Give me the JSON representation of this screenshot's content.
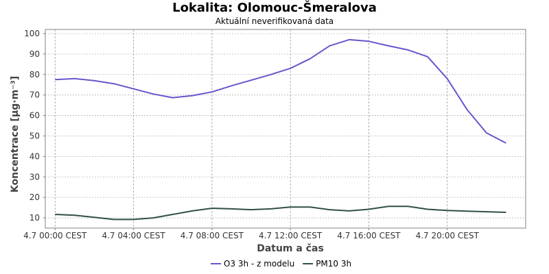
{
  "chart_data": {
    "type": "line",
    "title": "Lokalita: Olomouc-Šmeralova",
    "subtitle": "Aktuální neverifikovaná data",
    "xlabel": "Datum a čas",
    "ylabel": "Koncentrace [µg·m⁻³]",
    "ylim": [
      5,
      102
    ],
    "yticks": [
      10,
      20,
      30,
      40,
      50,
      60,
      70,
      80,
      90,
      100
    ],
    "xlim": [
      -0.5,
      24.0
    ],
    "xticks": [
      {
        "hour": 0,
        "label": "4.7 00:00 CEST"
      },
      {
        "hour": 4,
        "label": "4.7 04:00 CEST"
      },
      {
        "hour": 8,
        "label": "4.7 08:00 CEST"
      },
      {
        "hour": 12,
        "label": "4.7 12:00 CEST"
      },
      {
        "hour": 16,
        "label": "4.7 16:00 CEST"
      },
      {
        "hour": 20,
        "label": "4.7 20:00 CEST"
      }
    ],
    "grid": true,
    "legend_position": "bottom",
    "series": [
      {
        "name": "O3 3h - z modelu",
        "color": "#6655cc",
        "x": [
          0,
          1,
          2,
          3,
          4,
          5,
          6,
          7,
          8,
          9,
          10,
          11,
          12,
          13,
          14,
          15,
          16,
          17,
          18,
          19,
          20,
          21,
          22,
          23
        ],
        "values": [
          77.5,
          78,
          77,
          75.5,
          73,
          70.5,
          68.7,
          69.7,
          71.5,
          74.5,
          77.2,
          80,
          83,
          87.7,
          94,
          97,
          96.2,
          94,
          92,
          88.7,
          78,
          63,
          51.5,
          46.5
        ]
      },
      {
        "name": "PM10 3h",
        "color": "#2f4f46",
        "x": [
          0,
          1,
          2,
          3,
          4,
          5,
          6,
          7,
          8,
          9,
          10,
          11,
          12,
          13,
          14,
          15,
          16,
          17,
          18,
          19,
          20,
          21,
          22,
          23
        ],
        "values": [
          11.7,
          11.3,
          10.3,
          9.2,
          9.2,
          10,
          11.7,
          13.4,
          14.7,
          14.4,
          14,
          14.4,
          15.3,
          15.3,
          14,
          13.4,
          14.2,
          15.6,
          15.6,
          14.2,
          13.6,
          13.3,
          13,
          12.7
        ]
      }
    ]
  }
}
